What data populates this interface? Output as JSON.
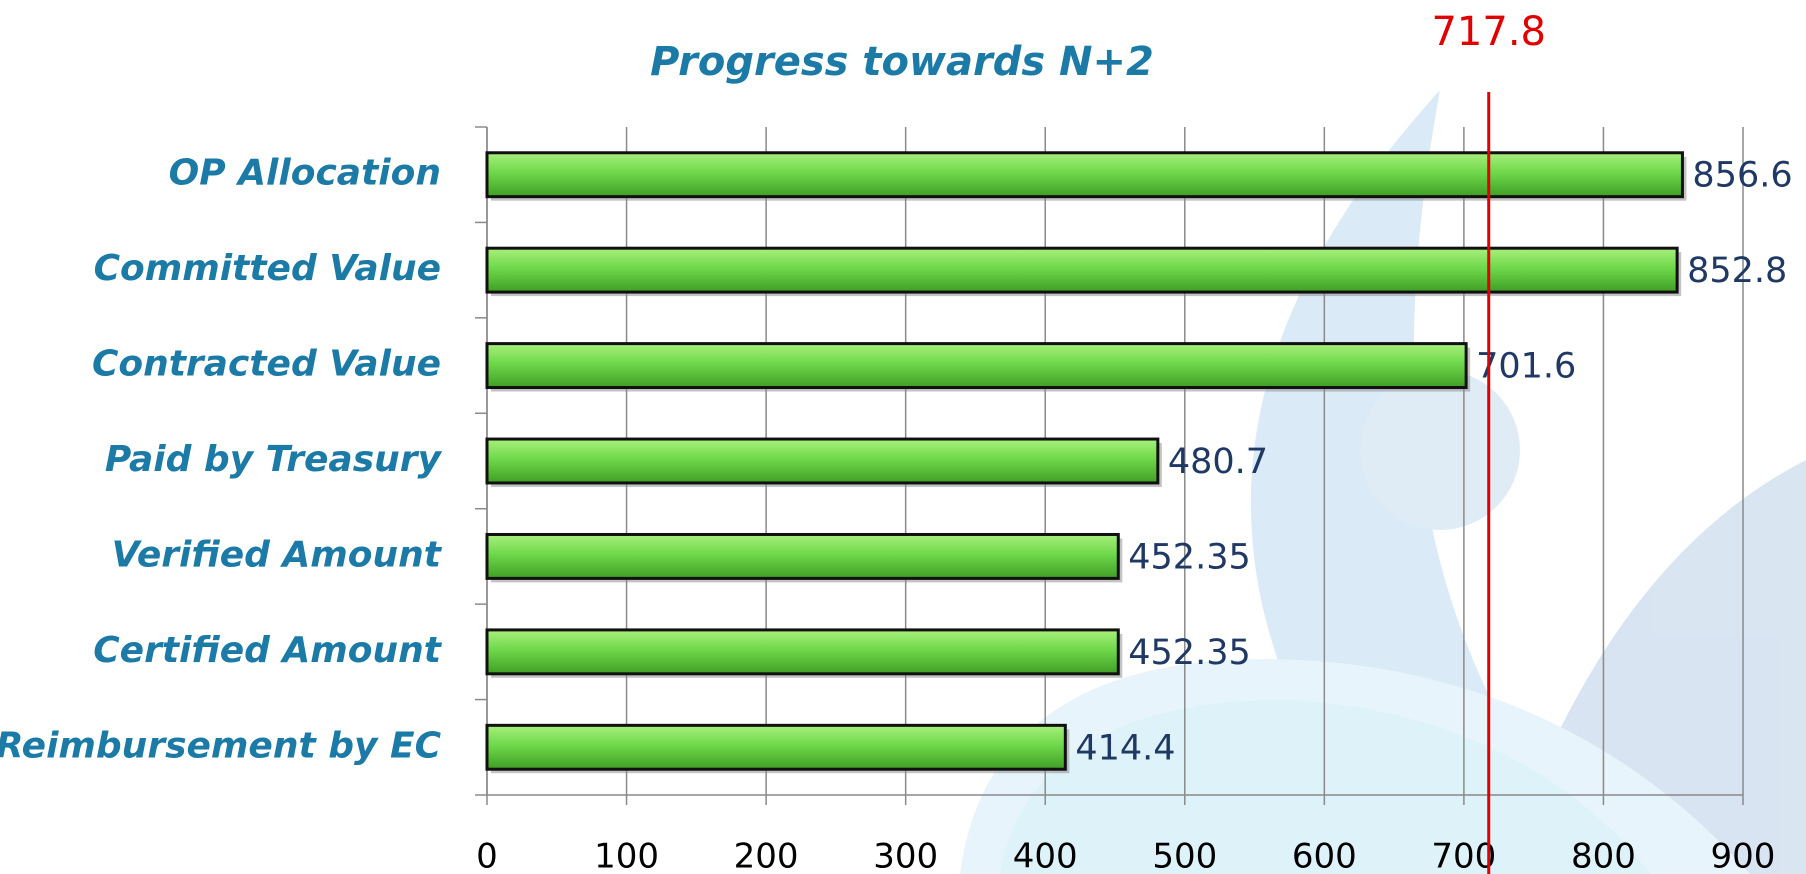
{
  "chart_data": {
    "type": "bar",
    "orientation": "horizontal",
    "title": "Progress towards N+2",
    "categories": [
      "OP Allocation",
      "Committed Value",
      "Contracted Value",
      "Paid by Treasury",
      "Verified Amount",
      "Certified Amount",
      "Reimbursement by EC"
    ],
    "values": [
      856.6,
      852.8,
      701.6,
      480.7,
      452.35,
      452.35,
      414.4
    ],
    "color": "#6fd84a",
    "xlim": [
      0,
      900
    ],
    "xticks": [
      0,
      100,
      200,
      300,
      400,
      500,
      600,
      700,
      800,
      900
    ],
    "grid": true,
    "reference": 717.8,
    "reference_color": "#e00000"
  }
}
